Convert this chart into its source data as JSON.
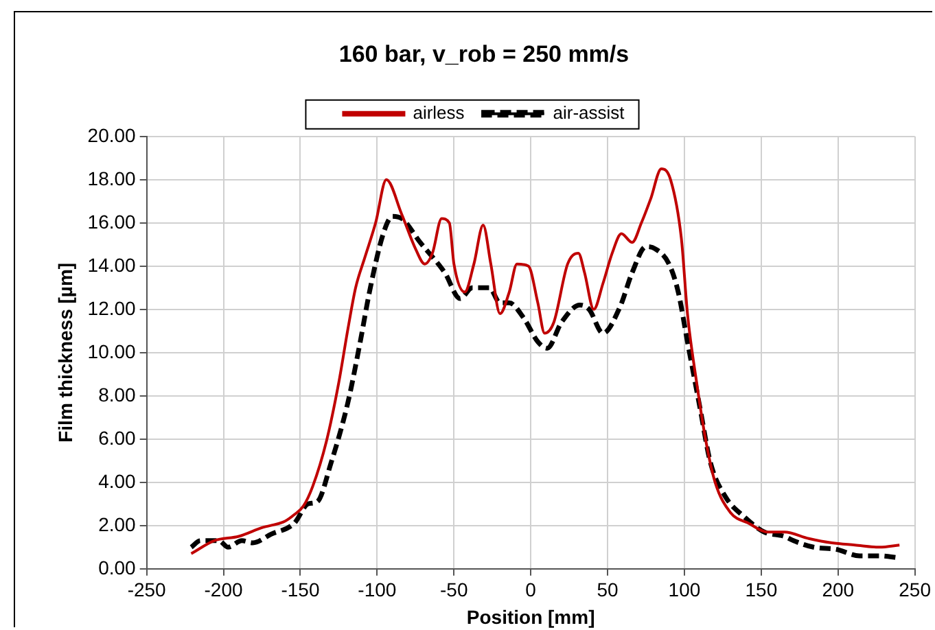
{
  "chart_data": {
    "type": "line",
    "title": "160 bar, v_rob = 250 mm/s",
    "xlabel": "Position [mm]",
    "ylabel": "Film thickness [µm]",
    "xlim": [
      -250,
      250
    ],
    "xticks": [
      -250,
      -200,
      -150,
      -100,
      -50,
      0,
      50,
      100,
      150,
      200,
      250
    ],
    "ylim": [
      0,
      20
    ],
    "yticks": [
      {
        "value": 0,
        "label": "0.00"
      },
      {
        "value": 2,
        "label": "2.00"
      },
      {
        "value": 4,
        "label": "4.00"
      },
      {
        "value": 6,
        "label": "6.00"
      },
      {
        "value": 8,
        "label": "8.00"
      },
      {
        "value": 10,
        "label": "10.00"
      },
      {
        "value": 12,
        "label": "12.00"
      },
      {
        "value": 14,
        "label": "14.00"
      },
      {
        "value": 16,
        "label": "16.00"
      },
      {
        "value": 18,
        "label": "18.00"
      },
      {
        "value": 20,
        "label": "20.00"
      }
    ],
    "grid": true,
    "legend": "top",
    "marker": "none",
    "series": [
      {
        "name": "airless",
        "color": "#c00000",
        "line_style": "solid",
        "x": [
          -221,
          -206,
          -190,
          -175,
          -160,
          -154,
          -148,
          -142,
          -133,
          -125,
          -119,
          -114,
          -108,
          -101,
          -94,
          -84,
          -75,
          -69,
          -64,
          -58,
          -53,
          -50,
          -43,
          -37,
          -31,
          -26,
          -20,
          -14,
          -9,
          -1.5,
          4.6,
          9,
          15,
          24,
          31,
          35,
          41,
          47,
          53,
          59,
          66,
          72,
          78,
          85,
          91,
          98,
          102,
          108,
          114,
          120,
          130,
          142,
          154,
          165,
          181,
          196,
          211,
          227,
          240
        ],
        "values": [
          0.7,
          1.3,
          1.5,
          1.9,
          2.2,
          2.5,
          2.9,
          3.8,
          5.9,
          8.6,
          11.1,
          13.0,
          14.4,
          16.0,
          18.0,
          16.4,
          14.8,
          14.1,
          14.6,
          16.2,
          16.0,
          14.1,
          12.8,
          14.1,
          15.9,
          14.1,
          11.8,
          12.8,
          14.1,
          14.0,
          12.3,
          10.9,
          11.4,
          14.1,
          14.6,
          13.7,
          12.0,
          13.2,
          14.6,
          15.5,
          15.1,
          16.0,
          17.1,
          18.5,
          18.0,
          15.3,
          11.8,
          8.6,
          5.9,
          4.0,
          2.6,
          2.1,
          1.7,
          1.7,
          1.4,
          1.2,
          1.1,
          1.0,
          1.1
        ]
      },
      {
        "name": "air-assist",
        "color": "#000000",
        "line_style": "dashed",
        "x": [
          -221,
          -215,
          -203,
          -197,
          -188,
          -181,
          -169,
          -154,
          -145,
          -139,
          -130,
          -119,
          -111,
          -105,
          -96,
          -90,
          -84,
          -72,
          -56,
          -46,
          -38,
          -27,
          -20,
          -14,
          -4.6,
          4.6,
          10.7,
          20,
          32,
          38,
          47,
          58,
          66,
          75,
          81,
          90,
          96,
          102,
          110,
          117,
          127,
          139,
          152,
          165,
          171,
          184,
          199,
          214,
          227,
          240
        ],
        "values": [
          1.0,
          1.3,
          1.3,
          1.0,
          1.3,
          1.2,
          1.6,
          2.1,
          3.0,
          3.1,
          4.9,
          7.7,
          10.5,
          12.8,
          15.5,
          16.3,
          16.2,
          15.1,
          13.7,
          12.5,
          13.0,
          13.0,
          12.3,
          12.3,
          11.6,
          10.5,
          10.2,
          11.4,
          12.2,
          12.0,
          10.9,
          12.1,
          13.7,
          14.9,
          14.8,
          14.1,
          12.8,
          10.5,
          7.5,
          4.9,
          3.3,
          2.4,
          1.7,
          1.5,
          1.3,
          1.0,
          0.9,
          0.6,
          0.6,
          0.5
        ]
      }
    ]
  }
}
